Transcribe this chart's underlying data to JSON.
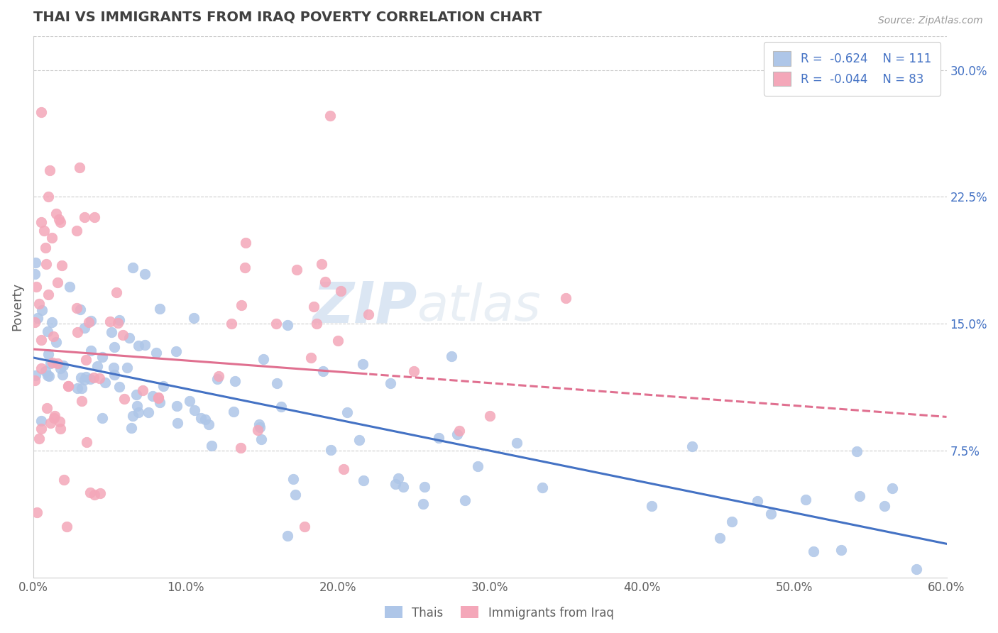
{
  "title": "THAI VS IMMIGRANTS FROM IRAQ POVERTY CORRELATION CHART",
  "source": "Source: ZipAtlas.com",
  "ylabel": "Poverty",
  "xlim": [
    0.0,
    0.6
  ],
  "ylim": [
    0.0,
    0.32
  ],
  "xtick_labels": [
    "0.0%",
    "10.0%",
    "20.0%",
    "30.0%",
    "40.0%",
    "50.0%",
    "60.0%"
  ],
  "xtick_values": [
    0.0,
    0.1,
    0.2,
    0.3,
    0.4,
    0.5,
    0.6
  ],
  "ytick_labels": [
    "7.5%",
    "15.0%",
    "22.5%",
    "30.0%"
  ],
  "ytick_values": [
    0.075,
    0.15,
    0.225,
    0.3
  ],
  "legend_r_blue": "-0.624",
  "legend_n_blue": "111",
  "legend_r_pink": "-0.044",
  "legend_n_pink": "83",
  "blue_color": "#aec6e8",
  "pink_color": "#f4a7b9",
  "blue_line_color": "#4472c4",
  "pink_line_color": "#e07090",
  "grid_color": "#cccccc",
  "title_color": "#404040",
  "axis_label_color": "#606060",
  "tick_label_color_right": "#4472c4",
  "background_color": "#ffffff",
  "blue_trend_start": 0.13,
  "blue_trend_end": 0.02,
  "pink_trend_start": 0.135,
  "pink_trend_end": 0.095
}
